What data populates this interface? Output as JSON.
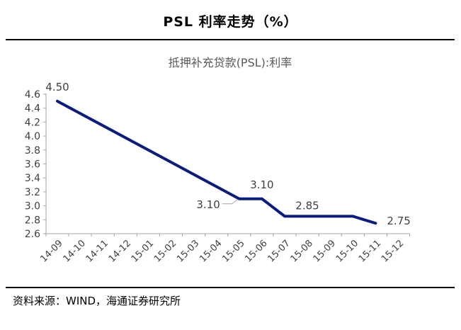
{
  "header": {
    "title": "PSL 利率走势（%）"
  },
  "source": "资料来源：WIND，海通证券研究所",
  "chart_data": {
    "type": "line",
    "title": "抵押补充贷款(PSL):利率",
    "xlabel": "",
    "ylabel": "",
    "x_categories": [
      "14-09",
      "14-10",
      "14-11",
      "14-12",
      "15-01",
      "15-02",
      "15-03",
      "15-04",
      "15-05",
      "15-06",
      "15-07",
      "15-08",
      "15-09",
      "15-10",
      "15-11",
      "15-12"
    ],
    "y_ticks": [
      "2.6",
      "2.8",
      "3.0",
      "3.2",
      "3.4",
      "3.6",
      "3.8",
      "4.0",
      "4.2",
      "4.4",
      "4.6"
    ],
    "ylim": [
      2.6,
      4.6
    ],
    "series": [
      {
        "color": "#0b1c80",
        "points": [
          {
            "x": "14-09",
            "y": 4.5
          },
          {
            "x": "15-05",
            "y": 3.1
          },
          {
            "x": "15-06",
            "y": 3.1
          },
          {
            "x": "15-07",
            "y": 2.85
          },
          {
            "x": "15-10",
            "y": 2.85
          },
          {
            "x": "15-11",
            "y": 2.75
          }
        ]
      }
    ],
    "data_labels": [
      {
        "x": "14-09",
        "y": 4.5,
        "text": "4.50",
        "pos": "above"
      },
      {
        "x": "15-05",
        "y": 3.1,
        "text": "3.10",
        "pos": "left-below",
        "leader": true
      },
      {
        "x": "15-06",
        "y": 3.1,
        "text": "3.10",
        "pos": "above"
      },
      {
        "x": "15-07",
        "y": 2.85,
        "text": "2.85",
        "pos": "above-right"
      },
      {
        "x": "15-11",
        "y": 2.75,
        "text": "2.75",
        "pos": "right"
      }
    ],
    "grid": false,
    "legend": "none"
  }
}
